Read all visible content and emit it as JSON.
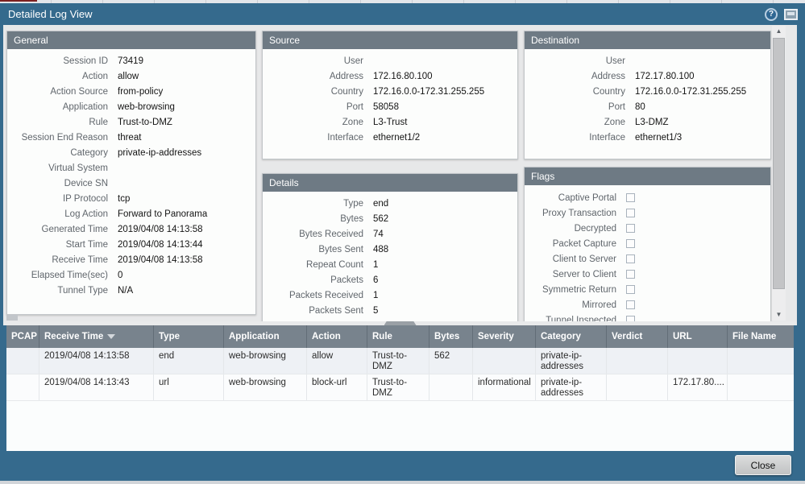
{
  "window": {
    "title": "Detailed Log View",
    "help_glyph": "?"
  },
  "colors": {
    "frame_teal": "#356a8d",
    "panel_header": "#6e7a84",
    "table_header": "#78838d",
    "content_bg": "#e7e8e9",
    "row_alt": "#eef1f5",
    "maroon_accent": "#7b2020"
  },
  "panels": {
    "general": {
      "title": "General",
      "rows": [
        {
          "label": "Session ID",
          "value": "73419"
        },
        {
          "label": "Action",
          "value": "allow"
        },
        {
          "label": "Action Source",
          "value": "from-policy"
        },
        {
          "label": "Application",
          "value": "web-browsing"
        },
        {
          "label": "Rule",
          "value": "Trust-to-DMZ"
        },
        {
          "label": "Session End Reason",
          "value": "threat"
        },
        {
          "label": "Category",
          "value": "private-ip-addresses"
        },
        {
          "label": "Virtual System",
          "value": ""
        },
        {
          "label": "Device SN",
          "value": ""
        },
        {
          "label": "IP Protocol",
          "value": "tcp"
        },
        {
          "label": "Log Action",
          "value": "Forward to Panorama"
        },
        {
          "label": "Generated Time",
          "value": "2019/04/08 14:13:58"
        },
        {
          "label": "Start Time",
          "value": "2019/04/08 14:13:44"
        },
        {
          "label": "Receive Time",
          "value": "2019/04/08 14:13:58"
        },
        {
          "label": "Elapsed Time(sec)",
          "value": "0"
        },
        {
          "label": "Tunnel Type",
          "value": "N/A"
        }
      ]
    },
    "source": {
      "title": "Source",
      "rows": [
        {
          "label": "User",
          "value": ""
        },
        {
          "label": "Address",
          "value": "172.16.80.100"
        },
        {
          "label": "Country",
          "value": "172.16.0.0-172.31.255.255"
        },
        {
          "label": "Port",
          "value": "58058"
        },
        {
          "label": "Zone",
          "value": "L3-Trust"
        },
        {
          "label": "Interface",
          "value": "ethernet1/2"
        }
      ]
    },
    "destination": {
      "title": "Destination",
      "rows": [
        {
          "label": "User",
          "value": ""
        },
        {
          "label": "Address",
          "value": "172.17.80.100"
        },
        {
          "label": "Country",
          "value": "172.16.0.0-172.31.255.255"
        },
        {
          "label": "Port",
          "value": "80"
        },
        {
          "label": "Zone",
          "value": "L3-DMZ"
        },
        {
          "label": "Interface",
          "value": "ethernet1/3"
        }
      ]
    },
    "details": {
      "title": "Details",
      "rows": [
        {
          "label": "Type",
          "value": "end"
        },
        {
          "label": "Bytes",
          "value": "562"
        },
        {
          "label": "Bytes Received",
          "value": "74"
        },
        {
          "label": "Bytes Sent",
          "value": "488"
        },
        {
          "label": "Repeat Count",
          "value": "1"
        },
        {
          "label": "Packets",
          "value": "6"
        },
        {
          "label": "Packets Received",
          "value": "1"
        },
        {
          "label": "Packets Sent",
          "value": "5"
        }
      ]
    },
    "flags": {
      "title": "Flags",
      "items": [
        {
          "label": "Captive Portal"
        },
        {
          "label": "Proxy Transaction"
        },
        {
          "label": "Decrypted"
        },
        {
          "label": "Packet Capture"
        },
        {
          "label": "Client to Server"
        },
        {
          "label": "Server to Client"
        },
        {
          "label": "Symmetric Return"
        },
        {
          "label": "Mirrored"
        },
        {
          "label": "Tunnel Inspected"
        }
      ]
    }
  },
  "table": {
    "columns": [
      {
        "label": "PCAP"
      },
      {
        "label": "Receive Time",
        "sorted": "desc"
      },
      {
        "label": "Type"
      },
      {
        "label": "Application"
      },
      {
        "label": "Action"
      },
      {
        "label": "Rule"
      },
      {
        "label": "Bytes"
      },
      {
        "label": "Severity"
      },
      {
        "label": "Category"
      },
      {
        "label": "Verdict"
      },
      {
        "label": "URL"
      },
      {
        "label": "File Name"
      }
    ],
    "rows": [
      {
        "pcap": "",
        "receive_time": "2019/04/08 14:13:58",
        "type": "end",
        "application": "web-browsing",
        "action": "allow",
        "rule": "Trust-to-DMZ",
        "bytes": "562",
        "severity": "",
        "category": "private-ip-addresses",
        "verdict": "",
        "url": "",
        "file_name": ""
      },
      {
        "pcap": "",
        "receive_time": "2019/04/08 14:13:43",
        "type": "url",
        "application": "web-browsing",
        "action": "block-url",
        "rule": "Trust-to-DMZ",
        "bytes": "",
        "severity": "informational",
        "category": "private-ip-addresses",
        "verdict": "",
        "url": "172.17.80....",
        "file_name": ""
      }
    ]
  },
  "footer": {
    "close_label": "Close"
  }
}
